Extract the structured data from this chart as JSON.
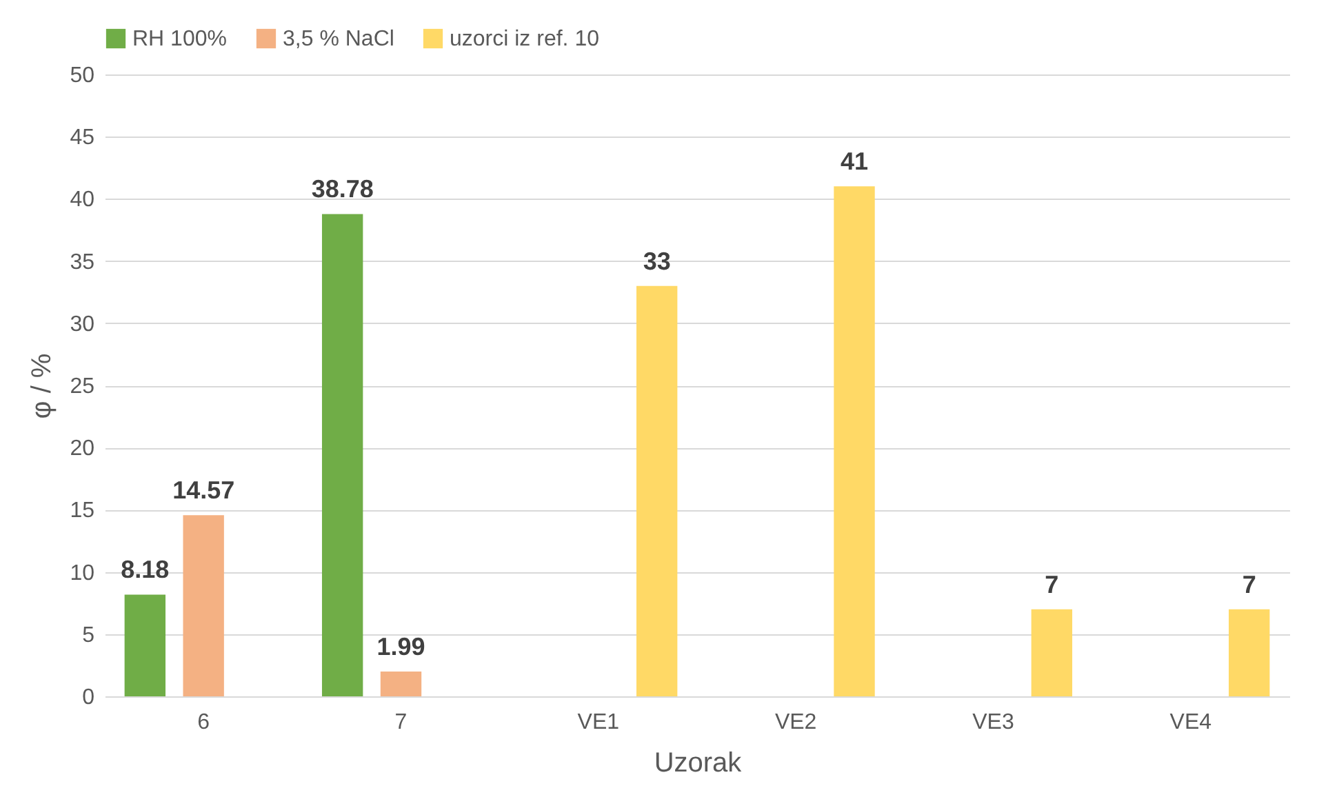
{
  "chart_data": {
    "type": "bar",
    "xlabel": "Uzorak",
    "ylabel": "φ / %",
    "categories": [
      "6",
      "7",
      "VE1",
      "VE2",
      "VE3",
      "VE4"
    ],
    "series": [
      {
        "name": "RH 100%",
        "color": "#70ad47",
        "values": [
          8.18,
          38.78,
          null,
          null,
          null,
          null
        ]
      },
      {
        "name": "3,5 % NaCl",
        "color": "#f4b183",
        "values": [
          14.57,
          1.99,
          null,
          null,
          null,
          null
        ]
      },
      {
        "name": "uzorci iz ref. 10",
        "color": "#ffd966",
        "values": [
          null,
          null,
          33,
          41,
          7,
          7
        ]
      }
    ],
    "ylim": [
      0,
      50
    ],
    "yticks": [
      0,
      5,
      10,
      15,
      20,
      25,
      30,
      35,
      40,
      45,
      50
    ],
    "grid": "y",
    "legend": "top",
    "data_labels": true
  }
}
